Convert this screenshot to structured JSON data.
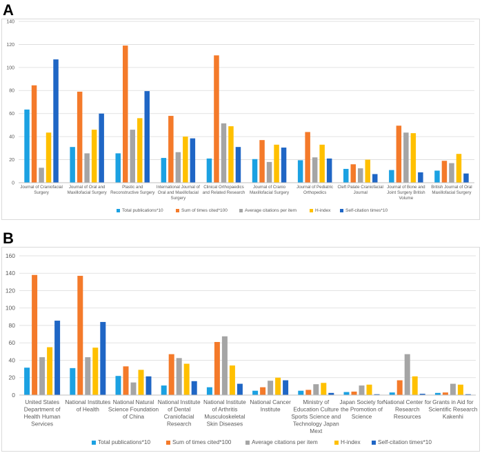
{
  "panels": {
    "a_label": "A",
    "b_label": "B"
  },
  "chart_data": [
    {
      "type": "bar",
      "title": "",
      "xlabel": "",
      "ylabel": "",
      "ylim": [
        0,
        140
      ],
      "yticks": [
        0,
        20,
        40,
        60,
        80,
        100,
        120,
        140
      ],
      "grid": true,
      "legend_position": "bottom",
      "categories": [
        [
          "Journal of Craniofacial",
          "Surgery"
        ],
        [
          "Journal of Oral and",
          "Maxillofacial Surgery"
        ],
        [
          "Plastic and",
          "Reconstructive Surgery"
        ],
        [
          "International Journal of",
          "Oral and Maxillofacial",
          "Surgery"
        ],
        [
          "Clinical Orthopaedics",
          "and Related Research"
        ],
        [
          "Journal of Cranio",
          "Maxillofacial Surgery"
        ],
        [
          "Journal of Pediatric",
          "Orthopedics"
        ],
        [
          "Cleft Palate Craniofacial",
          "Journal"
        ],
        [
          "Journal of Bone and",
          "Joint Surgery British",
          "Volume"
        ],
        [
          "British Journal of Oral",
          "Maxillofacial Surgery"
        ]
      ],
      "series": [
        {
          "name": "Total publications*10",
          "color": "#1BA1E2",
          "values": [
            63.5,
            31,
            25.5,
            21.5,
            21,
            20.5,
            19.5,
            12,
            11,
            10.5
          ]
        },
        {
          "name": "Sum of times cited*100",
          "color": "#F47A2A",
          "values": [
            84.5,
            79,
            119,
            58,
            110.5,
            37,
            44,
            16,
            49.5,
            19
          ]
        },
        {
          "name": "Average citations per item",
          "color": "#A5A5A5",
          "values": [
            13,
            25.5,
            46,
            26.5,
            51.5,
            18,
            22,
            12.5,
            43.5,
            17
          ]
        },
        {
          "name": "H-index",
          "color": "#FFC000",
          "values": [
            43.5,
            46,
            56,
            40,
            49,
            33,
            33,
            20,
            43,
            25
          ]
        },
        {
          "name": "Self-citation times*10",
          "color": "#1F66C5",
          "values": [
            107,
            60,
            79.5,
            38.5,
            31,
            30.5,
            21,
            7.5,
            9,
            8
          ]
        }
      ]
    },
    {
      "type": "bar",
      "title": "",
      "xlabel": "",
      "ylabel": "",
      "ylim": [
        0,
        160
      ],
      "yticks": [
        0,
        20,
        40,
        60,
        80,
        100,
        120,
        140,
        160
      ],
      "grid": true,
      "legend_position": "bottom",
      "categories": [
        [
          "United States",
          "Department of",
          "Health Human",
          "Services"
        ],
        [
          "National Institutes",
          "of Health"
        ],
        [
          "National Natural",
          "Science Foundation",
          "of China"
        ],
        [
          "National Institute",
          "of Dental",
          "Craniofacial",
          "Research"
        ],
        [
          "National Institute",
          "of Arthritis",
          "Musculoskeletal",
          "Skin Diseases"
        ],
        [
          "National Cancer",
          "Institute"
        ],
        [
          "Ministry of",
          "Education Culture",
          "Sports Science and",
          "Technology Japan",
          "Mext"
        ],
        [
          "Japan Society for",
          "the Promotion of",
          "Science"
        ],
        [
          "National Center for",
          "Research",
          "Resources"
        ],
        [
          "Grants in Aid for",
          "Scientific Research",
          "Kakenhi"
        ]
      ],
      "series": [
        {
          "name": "Total publications*10",
          "color": "#1BA1E2",
          "values": [
            31.5,
            31,
            22,
            11,
            9,
            5,
            5,
            3.5,
            3,
            2.5
          ]
        },
        {
          "name": "Sum of times cited*100",
          "color": "#F47A2A",
          "values": [
            138,
            137,
            33,
            47,
            61,
            9,
            6,
            4,
            17,
            3
          ]
        },
        {
          "name": "Average citations per item",
          "color": "#A5A5A5",
          "values": [
            43.5,
            43.5,
            14.5,
            42.5,
            67.5,
            16.5,
            12.5,
            11,
            47,
            13
          ]
        },
        {
          "name": "H-index",
          "color": "#FFC000",
          "values": [
            55,
            54.5,
            29,
            36,
            34,
            20,
            14,
            12,
            21.5,
            12
          ]
        },
        {
          "name": "Self-citation times*10",
          "color": "#1F66C5",
          "values": [
            85.5,
            84,
            21.5,
            16,
            13,
            17,
            2.5,
            1,
            1.5,
            1
          ]
        }
      ]
    }
  ]
}
